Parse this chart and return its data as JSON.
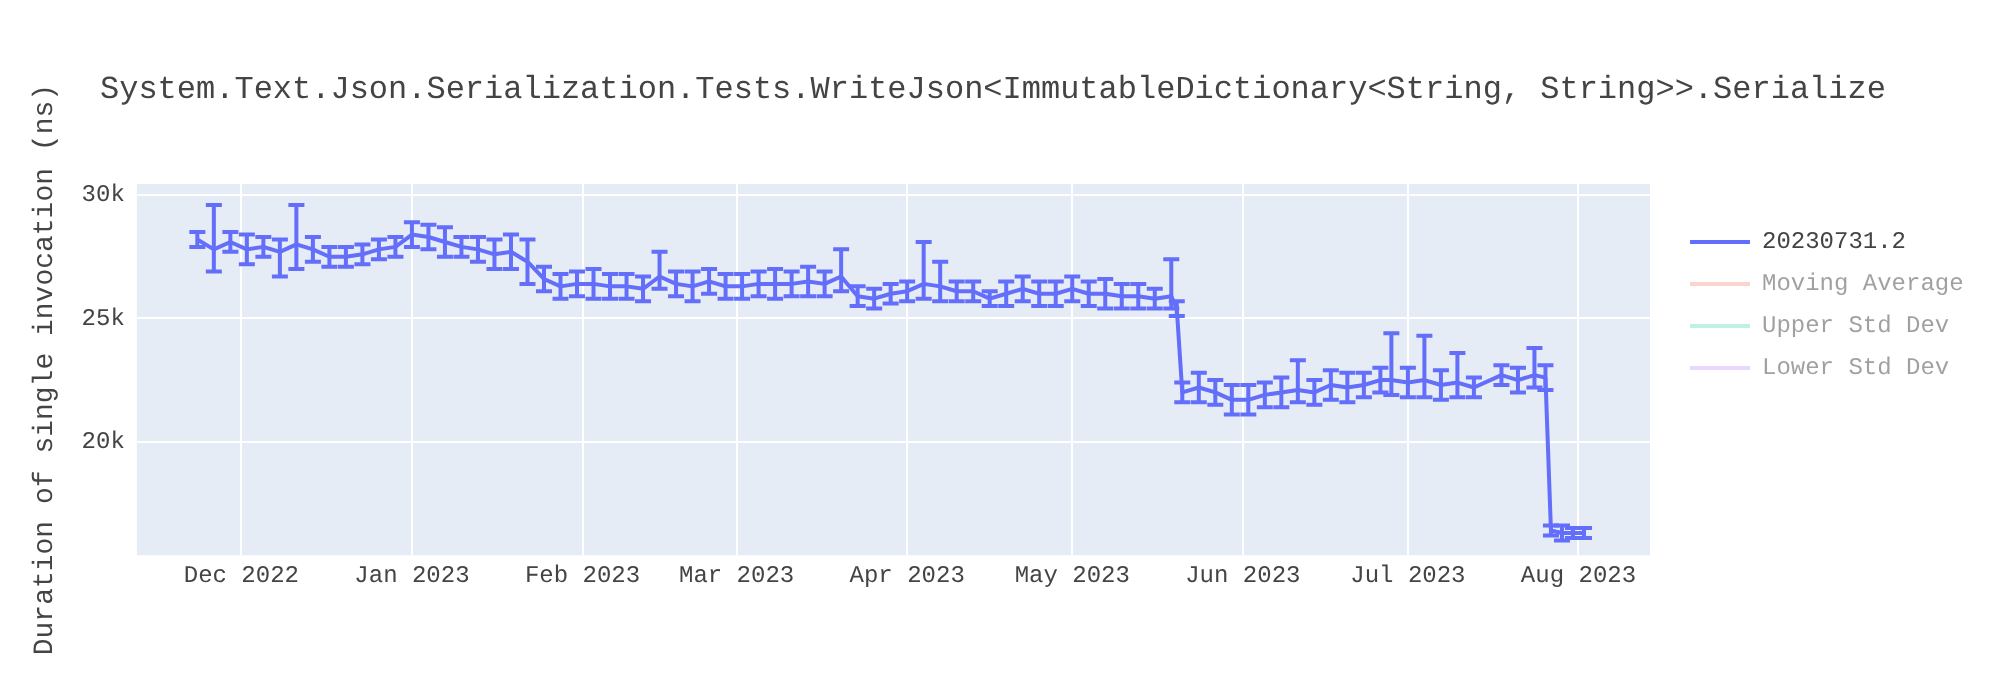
{
  "chart_data": {
    "type": "line",
    "title": "System.Text.Json.Serialization.Tests.WriteJson<ImmutableDictionary<String, String>>.Serialize",
    "ylabel": "Duration of single invocation (ns)",
    "x": [
      "2022-11-23",
      "2022-11-26",
      "2022-11-29",
      "2022-12-02",
      "2022-12-05",
      "2022-12-08",
      "2022-12-11",
      "2022-12-14",
      "2022-12-17",
      "2022-12-20",
      "2022-12-23",
      "2022-12-26",
      "2022-12-29",
      "2023-01-01",
      "2023-01-04",
      "2023-01-07",
      "2023-01-10",
      "2023-01-13",
      "2023-01-16",
      "2023-01-19",
      "2023-01-22",
      "2023-01-25",
      "2023-01-28",
      "2023-01-31",
      "2023-02-03",
      "2023-02-06",
      "2023-02-09",
      "2023-02-12",
      "2023-02-15",
      "2023-02-18",
      "2023-02-21",
      "2023-02-24",
      "2023-02-27",
      "2023-03-02",
      "2023-03-05",
      "2023-03-08",
      "2023-03-11",
      "2023-03-14",
      "2023-03-17",
      "2023-03-20",
      "2023-03-23",
      "2023-03-26",
      "2023-03-29",
      "2023-04-01",
      "2023-04-04",
      "2023-04-07",
      "2023-04-10",
      "2023-04-13",
      "2023-04-16",
      "2023-04-19",
      "2023-04-22",
      "2023-04-25",
      "2023-04-28",
      "2023-05-01",
      "2023-05-04",
      "2023-05-07",
      "2023-05-10",
      "2023-05-13",
      "2023-05-16",
      "2023-05-19",
      "2023-05-20",
      "2023-05-21",
      "2023-05-24",
      "2023-05-27",
      "2023-05-30",
      "2023-06-02",
      "2023-06-05",
      "2023-06-08",
      "2023-06-11",
      "2023-06-14",
      "2023-06-17",
      "2023-06-20",
      "2023-06-23",
      "2023-06-26",
      "2023-06-28",
      "2023-07-01",
      "2023-07-04",
      "2023-07-07",
      "2023-07-10",
      "2023-07-13",
      "2023-07-18",
      "2023-07-21",
      "2023-07-24",
      "2023-07-26",
      "2023-07-27",
      "2023-07-29",
      "2023-07-31",
      "2023-08-02"
    ],
    "series": [
      {
        "name": "20230731.2",
        "color": "#636efa",
        "values": [
          28200,
          27800,
          28100,
          27800,
          27900,
          27700,
          28000,
          27800,
          27500,
          27500,
          27600,
          27800,
          27900,
          28400,
          28300,
          28100,
          27900,
          27800,
          27600,
          27700,
          27300,
          26600,
          26300,
          26400,
          26400,
          26300,
          26300,
          26200,
          26700,
          26400,
          26300,
          26500,
          26300,
          26300,
          26400,
          26400,
          26400,
          26500,
          26400,
          26700,
          25900,
          25800,
          26000,
          26100,
          26400,
          26300,
          26100,
          26100,
          25800,
          26000,
          26200,
          26000,
          26000,
          26200,
          26000,
          26000,
          25900,
          25900,
          25800,
          25900,
          25400,
          22000,
          22200,
          22000,
          21700,
          21700,
          21900,
          22000,
          22100,
          22000,
          22300,
          22200,
          22300,
          22500,
          22500,
          22400,
          22500,
          22300,
          22400,
          22200,
          22700,
          22500,
          22700,
          22600,
          16400,
          16300,
          16300,
          16300
        ],
        "errors": [
          300,
          [
            26900,
            29600
          ],
          400,
          600,
          400,
          [
            26700,
            28200
          ],
          [
            27000,
            29600
          ],
          500,
          400,
          400,
          400,
          400,
          400,
          500,
          500,
          600,
          400,
          500,
          600,
          700,
          900,
          500,
          500,
          500,
          600,
          500,
          500,
          500,
          [
            26200,
            27700
          ],
          500,
          600,
          500,
          500,
          500,
          500,
          600,
          500,
          600,
          500,
          [
            26100,
            27800
          ],
          400,
          400,
          400,
          400,
          [
            25800,
            28100
          ],
          [
            25700,
            27300
          ],
          400,
          400,
          300,
          500,
          500,
          500,
          500,
          500,
          500,
          600,
          500,
          500,
          400,
          [
            25400,
            27400
          ],
          300,
          400,
          600,
          500,
          600,
          600,
          500,
          600,
          [
            21600,
            23300
          ],
          500,
          600,
          600,
          500,
          500,
          [
            21900,
            24400
          ],
          600,
          [
            21800,
            24300
          ],
          600,
          [
            21800,
            23600
          ],
          400,
          400,
          500,
          [
            22200,
            23800
          ],
          500,
          200,
          300,
          200,
          200
        ]
      },
      {
        "name": "Moving Average",
        "color": "#f7aa9d",
        "values": [
          null,
          null,
          null,
          null,
          null,
          null,
          null,
          null,
          null,
          null,
          null,
          null,
          null,
          null,
          null,
          null,
          null,
          null,
          null,
          null,
          null,
          null,
          null,
          null,
          null,
          null,
          null,
          null,
          null,
          null,
          null,
          null,
          null,
          null,
          null,
          null,
          null,
          null,
          null,
          null,
          null,
          null,
          null,
          null,
          null,
          null,
          null,
          null,
          null,
          null,
          null,
          null,
          null,
          null,
          null,
          null,
          null,
          null,
          null,
          null,
          null,
          null,
          null,
          null,
          null,
          null,
          null,
          null,
          null,
          null,
          null,
          null,
          null,
          null,
          null,
          null,
          null,
          null,
          null,
          null,
          null,
          null,
          null,
          null,
          null,
          null,
          null,
          null
        ]
      },
      {
        "name": "Upper Std Dev",
        "color": "#80e5cb",
        "values": [
          null,
          null,
          null,
          null,
          null,
          null,
          null,
          null,
          null,
          null,
          null,
          null,
          null,
          null,
          null,
          null,
          null,
          null,
          null,
          null,
          null,
          null,
          null,
          null,
          null,
          null,
          null,
          null,
          null,
          null,
          null,
          null,
          null,
          null,
          null,
          null,
          null,
          null,
          null,
          null,
          null,
          null,
          null,
          null,
          null,
          null,
          null,
          null,
          null,
          null,
          null,
          null,
          null,
          null,
          null,
          null,
          null,
          null,
          null,
          null,
          null,
          null,
          null,
          null,
          null,
          null,
          null,
          null,
          null,
          null,
          null,
          null,
          null,
          null,
          null,
          null,
          null,
          null,
          null,
          null,
          null,
          null,
          null,
          null,
          null,
          null,
          null,
          null
        ]
      },
      {
        "name": "Lower Std Dev",
        "color": "#d5b1fd",
        "values": [
          null,
          null,
          null,
          null,
          null,
          null,
          null,
          null,
          null,
          null,
          null,
          null,
          null,
          null,
          null,
          null,
          null,
          null,
          null,
          null,
          null,
          null,
          null,
          null,
          null,
          null,
          null,
          null,
          null,
          null,
          null,
          null,
          null,
          null,
          null,
          null,
          null,
          null,
          null,
          null,
          null,
          null,
          null,
          null,
          null,
          null,
          null,
          null,
          null,
          null,
          null,
          null,
          null,
          null,
          null,
          null,
          null,
          null,
          null,
          null,
          null,
          null,
          null,
          null,
          null,
          null,
          null,
          null,
          null,
          null,
          null,
          null,
          null,
          null,
          null,
          null,
          null,
          null,
          null,
          null,
          null,
          null,
          null,
          null,
          null,
          null,
          null,
          null
        ]
      }
    ],
    "xlim": [
      "2022-11-12",
      "2023-08-14"
    ],
    "xticks": [
      {
        "value": "2022-12-01",
        "label": "Dec 2022"
      },
      {
        "value": "2023-01-01",
        "label": "Jan 2023"
      },
      {
        "value": "2023-02-01",
        "label": "Feb 2023"
      },
      {
        "value": "2023-03-01",
        "label": "Mar 2023"
      },
      {
        "value": "2023-04-01",
        "label": "Apr 2023"
      },
      {
        "value": "2023-05-01",
        "label": "May 2023"
      },
      {
        "value": "2023-06-01",
        "label": "Jun 2023"
      },
      {
        "value": "2023-07-01",
        "label": "Jul 2023"
      },
      {
        "value": "2023-08-01",
        "label": "Aug 2023"
      }
    ],
    "ylim": [
      15400,
      30450
    ],
    "yticks": [
      {
        "value": 20000,
        "label": "20k"
      },
      {
        "value": 25000,
        "label": "25k"
      },
      {
        "value": 30000,
        "label": "30k"
      }
    ],
    "grid": true,
    "legend": "right",
    "line_style": "solid"
  }
}
